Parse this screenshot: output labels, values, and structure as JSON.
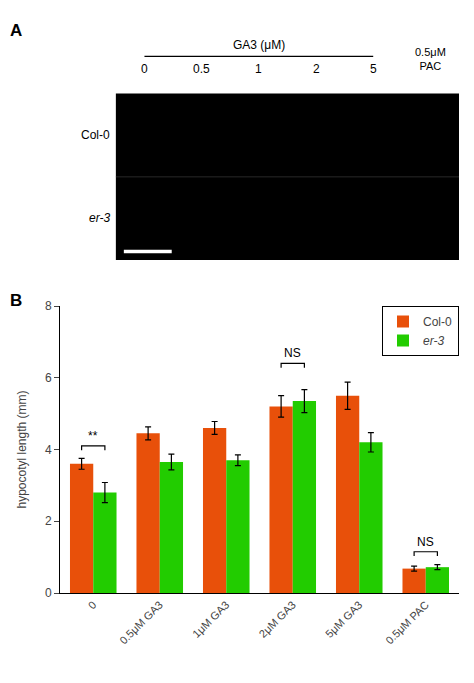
{
  "chart_data": [
    {
      "type": "image",
      "title": "A",
      "column_title": "GA3 (μM)",
      "columns": [
        "0",
        "0.5",
        "1",
        "2",
        "5"
      ],
      "rows": [
        "Col-0",
        "er-3"
      ],
      "annotations": [
        {
          "text": "0.5μM\nPAC"
        }
      ]
    },
    {
      "type": "bar",
      "title": "B",
      "categories": [
        "0",
        "0.5μM GA3",
        "1μM GA3",
        "2μM GA3",
        "5μM GA3",
        "0.5μM PAC"
      ],
      "series": [
        {
          "name": "Col-0",
          "color": "#E8500A",
          "values": [
            3.6,
            4.45,
            4.6,
            5.2,
            5.5,
            0.68
          ],
          "errors": [
            0.15,
            0.18,
            0.18,
            0.3,
            0.38,
            0.07
          ]
        },
        {
          "name": "er-3",
          "color": "#22CC00",
          "values": [
            2.8,
            3.65,
            3.7,
            5.35,
            4.2,
            0.72
          ],
          "errors": [
            0.28,
            0.22,
            0.15,
            0.32,
            0.27,
            0.07
          ]
        }
      ],
      "ylabel": "hypocotyl length (mm)",
      "ylim": [
        0,
        8
      ],
      "yticks": [
        0,
        2,
        4,
        6,
        8
      ],
      "grid": false,
      "legend": "upper right",
      "annotations": [
        {
          "text": "**",
          "x": 0,
          "y": 4.1
        },
        {
          "text": "NS",
          "x": 3,
          "y": 6.4
        },
        {
          "text": "NS",
          "x": 5,
          "y": 1.15
        }
      ]
    }
  ]
}
